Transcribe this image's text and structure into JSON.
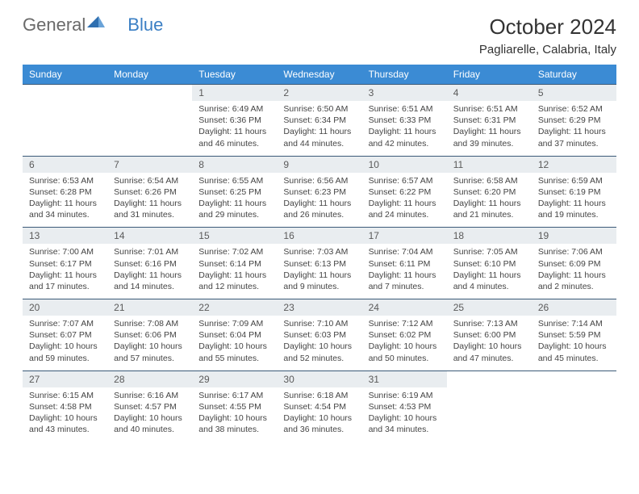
{
  "logo": {
    "text1": "General",
    "text2": "Blue"
  },
  "title": "October 2024",
  "location": "Pagliarelle, Calabria, Italy",
  "colors": {
    "header_bg": "#3b8bd4",
    "header_text": "#ffffff",
    "daynum_bg": "#e9edf0",
    "daynum_border": "#3b5a78",
    "body_text": "#444444",
    "logo_gray": "#6a6a6a",
    "logo_blue": "#3b7fc4"
  },
  "weekdays": [
    "Sunday",
    "Monday",
    "Tuesday",
    "Wednesday",
    "Thursday",
    "Friday",
    "Saturday"
  ],
  "weeks": [
    {
      "nums": [
        "",
        "",
        "1",
        "2",
        "3",
        "4",
        "5"
      ],
      "cells": [
        null,
        null,
        {
          "sr": "6:49 AM",
          "ss": "6:36 PM",
          "dl": "11 hours and 46 minutes."
        },
        {
          "sr": "6:50 AM",
          "ss": "6:34 PM",
          "dl": "11 hours and 44 minutes."
        },
        {
          "sr": "6:51 AM",
          "ss": "6:33 PM",
          "dl": "11 hours and 42 minutes."
        },
        {
          "sr": "6:51 AM",
          "ss": "6:31 PM",
          "dl": "11 hours and 39 minutes."
        },
        {
          "sr": "6:52 AM",
          "ss": "6:29 PM",
          "dl": "11 hours and 37 minutes."
        }
      ]
    },
    {
      "nums": [
        "6",
        "7",
        "8",
        "9",
        "10",
        "11",
        "12"
      ],
      "cells": [
        {
          "sr": "6:53 AM",
          "ss": "6:28 PM",
          "dl": "11 hours and 34 minutes."
        },
        {
          "sr": "6:54 AM",
          "ss": "6:26 PM",
          "dl": "11 hours and 31 minutes."
        },
        {
          "sr": "6:55 AM",
          "ss": "6:25 PM",
          "dl": "11 hours and 29 minutes."
        },
        {
          "sr": "6:56 AM",
          "ss": "6:23 PM",
          "dl": "11 hours and 26 minutes."
        },
        {
          "sr": "6:57 AM",
          "ss": "6:22 PM",
          "dl": "11 hours and 24 minutes."
        },
        {
          "sr": "6:58 AM",
          "ss": "6:20 PM",
          "dl": "11 hours and 21 minutes."
        },
        {
          "sr": "6:59 AM",
          "ss": "6:19 PM",
          "dl": "11 hours and 19 minutes."
        }
      ]
    },
    {
      "nums": [
        "13",
        "14",
        "15",
        "16",
        "17",
        "18",
        "19"
      ],
      "cells": [
        {
          "sr": "7:00 AM",
          "ss": "6:17 PM",
          "dl": "11 hours and 17 minutes."
        },
        {
          "sr": "7:01 AM",
          "ss": "6:16 PM",
          "dl": "11 hours and 14 minutes."
        },
        {
          "sr": "7:02 AM",
          "ss": "6:14 PM",
          "dl": "11 hours and 12 minutes."
        },
        {
          "sr": "7:03 AM",
          "ss": "6:13 PM",
          "dl": "11 hours and 9 minutes."
        },
        {
          "sr": "7:04 AM",
          "ss": "6:11 PM",
          "dl": "11 hours and 7 minutes."
        },
        {
          "sr": "7:05 AM",
          "ss": "6:10 PM",
          "dl": "11 hours and 4 minutes."
        },
        {
          "sr": "7:06 AM",
          "ss": "6:09 PM",
          "dl": "11 hours and 2 minutes."
        }
      ]
    },
    {
      "nums": [
        "20",
        "21",
        "22",
        "23",
        "24",
        "25",
        "26"
      ],
      "cells": [
        {
          "sr": "7:07 AM",
          "ss": "6:07 PM",
          "dl": "10 hours and 59 minutes."
        },
        {
          "sr": "7:08 AM",
          "ss": "6:06 PM",
          "dl": "10 hours and 57 minutes."
        },
        {
          "sr": "7:09 AM",
          "ss": "6:04 PM",
          "dl": "10 hours and 55 minutes."
        },
        {
          "sr": "7:10 AM",
          "ss": "6:03 PM",
          "dl": "10 hours and 52 minutes."
        },
        {
          "sr": "7:12 AM",
          "ss": "6:02 PM",
          "dl": "10 hours and 50 minutes."
        },
        {
          "sr": "7:13 AM",
          "ss": "6:00 PM",
          "dl": "10 hours and 47 minutes."
        },
        {
          "sr": "7:14 AM",
          "ss": "5:59 PM",
          "dl": "10 hours and 45 minutes."
        }
      ]
    },
    {
      "nums": [
        "27",
        "28",
        "29",
        "30",
        "31",
        "",
        ""
      ],
      "cells": [
        {
          "sr": "6:15 AM",
          "ss": "4:58 PM",
          "dl": "10 hours and 43 minutes."
        },
        {
          "sr": "6:16 AM",
          "ss": "4:57 PM",
          "dl": "10 hours and 40 minutes."
        },
        {
          "sr": "6:17 AM",
          "ss": "4:55 PM",
          "dl": "10 hours and 38 minutes."
        },
        {
          "sr": "6:18 AM",
          "ss": "4:54 PM",
          "dl": "10 hours and 36 minutes."
        },
        {
          "sr": "6:19 AM",
          "ss": "4:53 PM",
          "dl": "10 hours and 34 minutes."
        },
        null,
        null
      ]
    }
  ],
  "labels": {
    "sunrise": "Sunrise: ",
    "sunset": "Sunset: ",
    "daylight": "Daylight: "
  }
}
